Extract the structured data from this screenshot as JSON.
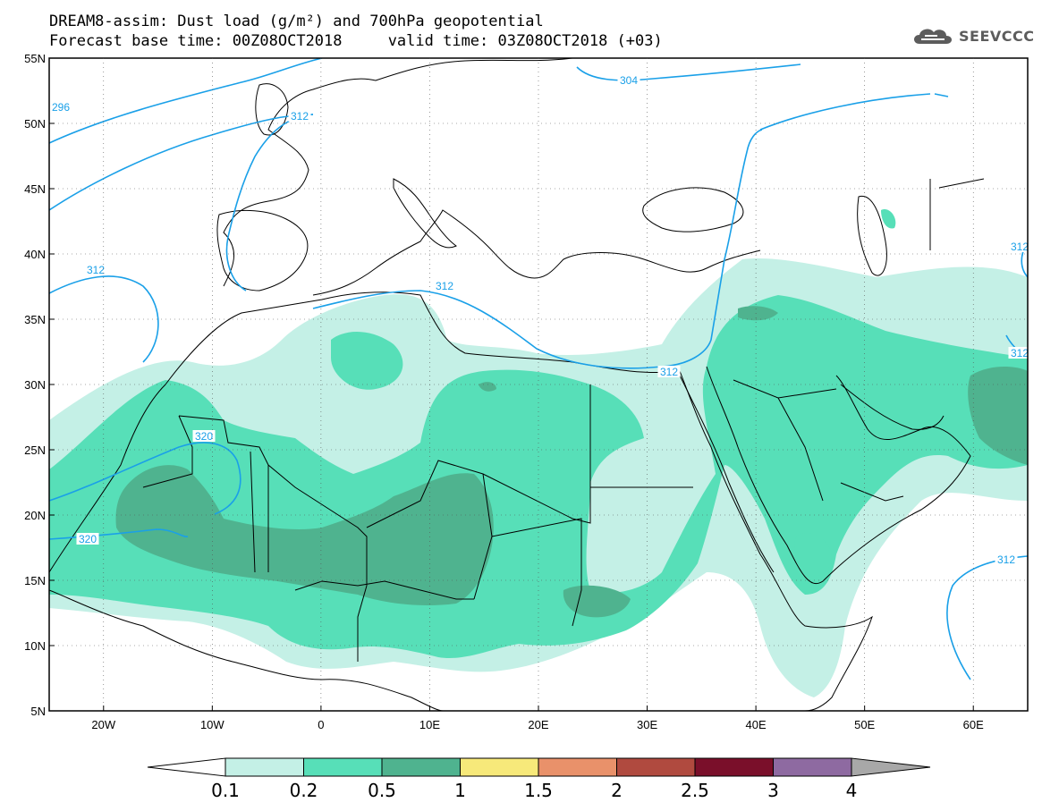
{
  "header": {
    "title_line_1": "DREAM8-assim: Dust load (g/m²) and 700hPa geopotential",
    "title_line_2": "Forecast base time: 00Z08OCT2018     valid time: 03Z08OCT2018 (+03)"
  },
  "logo": {
    "text": "SEEVCCC",
    "icon": "cloud-icon"
  },
  "map": {
    "lon_range": [
      -25,
      65
    ],
    "lat_range": [
      5,
      55
    ],
    "lat_ticks": [
      "55N",
      "50N",
      "45N",
      "40N",
      "35N",
      "30N",
      "25N",
      "20N",
      "15N",
      "10N",
      "5N"
    ],
    "lon_ticks": [
      "20W",
      "10W",
      "0",
      "10E",
      "20E",
      "30E",
      "40E",
      "50E",
      "60E"
    ],
    "contour_labels": [
      "296",
      "304",
      "312",
      "312",
      "312",
      "312",
      "320",
      "320",
      "312",
      "312",
      "312"
    ],
    "contour_color": "#1aa0e8",
    "coast_color": "#000000"
  },
  "colorbar": {
    "labels": [
      "0.1",
      "0.2",
      "0.5",
      "1",
      "1.5",
      "2",
      "2.5",
      "3",
      "4"
    ],
    "colors": [
      "#ffffff",
      "#c4f0e6",
      "#57dfb8",
      "#4fb38f",
      "#f7e97a",
      "#e9916a",
      "#b04a3f",
      "#7a0f2a",
      "#8e6aa1",
      "#a8a8a8"
    ]
  },
  "dust_colors": {
    "light": "#c4f0e6",
    "medium": "#57dfb8",
    "dark": "#4fb38f"
  }
}
